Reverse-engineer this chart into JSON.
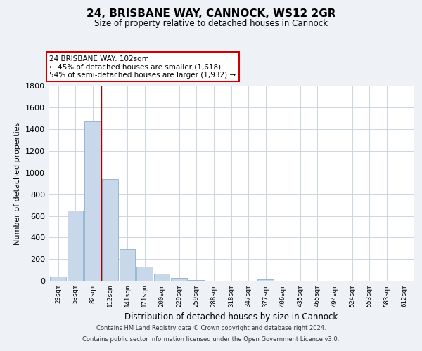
{
  "title": "24, BRISBANE WAY, CANNOCK, WS12 2GR",
  "subtitle": "Size of property relative to detached houses in Cannock",
  "xlabel": "Distribution of detached houses by size in Cannock",
  "ylabel": "Number of detached properties",
  "bar_labels": [
    "23sqm",
    "53sqm",
    "82sqm",
    "112sqm",
    "141sqm",
    "171sqm",
    "200sqm",
    "229sqm",
    "259sqm",
    "288sqm",
    "318sqm",
    "347sqm",
    "377sqm",
    "406sqm",
    "435sqm",
    "465sqm",
    "494sqm",
    "524sqm",
    "553sqm",
    "583sqm",
    "612sqm"
  ],
  "bar_values": [
    40,
    650,
    1470,
    940,
    295,
    130,
    65,
    25,
    5,
    0,
    0,
    0,
    15,
    0,
    0,
    0,
    0,
    0,
    0,
    0,
    0
  ],
  "bar_color": "#c8d8ea",
  "bar_edge_color": "#8ab0cc",
  "vline_x": 2.5,
  "vline_color": "#aa0000",
  "annotation_text": "24 BRISBANE WAY: 102sqm\n← 45% of detached houses are smaller (1,618)\n54% of semi-detached houses are larger (1,932) →",
  "annotation_box_color": "#ffffff",
  "annotation_box_edgecolor": "#cc0000",
  "ylim": [
    0,
    1800
  ],
  "yticks": [
    0,
    200,
    400,
    600,
    800,
    1000,
    1200,
    1400,
    1600,
    1800
  ],
  "footer_line1": "Contains HM Land Registry data © Crown copyright and database right 2024.",
  "footer_line2": "Contains public sector information licensed under the Open Government Licence v3.0.",
  "bg_color": "#eef2f6",
  "plot_bg_color": "#ffffff",
  "grid_color": "#c5ced8"
}
